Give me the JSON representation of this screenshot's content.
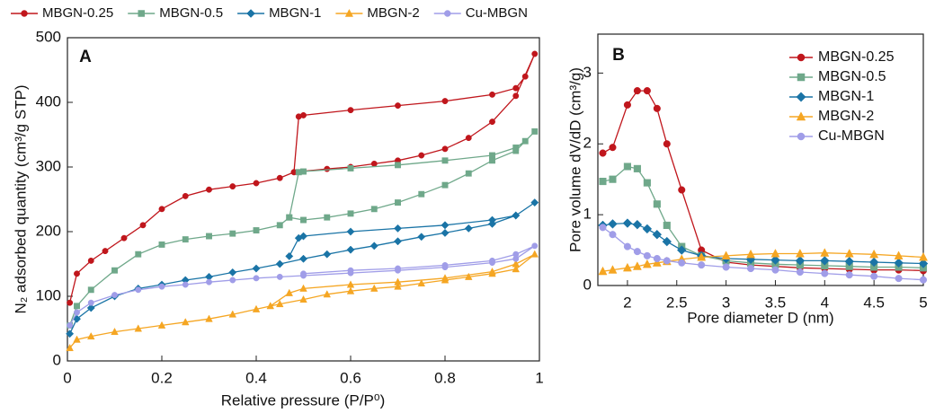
{
  "chart_data": [
    {
      "type": "line",
      "panel_label": "A",
      "xlabel": "Relative pressure (P/P⁰)",
      "ylabel": "N₂ adsorbed quantity (cm³/g STP)",
      "xlim": [
        0,
        1
      ],
      "ylim": [
        0,
        500
      ],
      "xticks": [
        0,
        0.2,
        0.4,
        0.6,
        0.8,
        1
      ],
      "yticks": [
        0,
        100,
        200,
        300,
        400,
        500
      ],
      "legend": "top",
      "series": [
        {
          "name": "MBGN-0.25",
          "color": "#c0161c",
          "marker": "circle",
          "x": [
            0.005,
            0.02,
            0.05,
            0.08,
            0.12,
            0.16,
            0.2,
            0.25,
            0.3,
            0.35,
            0.4,
            0.45,
            0.48,
            0.55,
            0.6,
            0.65,
            0.7,
            0.75,
            0.8,
            0.85,
            0.9,
            0.95,
            0.99,
            0.97,
            0.95,
            0.9,
            0.8,
            0.7,
            0.6,
            0.5,
            0.49,
            0.48
          ],
          "values": [
            90,
            135,
            155,
            170,
            190,
            210,
            235,
            255,
            265,
            270,
            275,
            283,
            292,
            297,
            300,
            305,
            310,
            318,
            328,
            345,
            370,
            410,
            475,
            440,
            422,
            412,
            402,
            395,
            388,
            380,
            378,
            292
          ]
        },
        {
          "name": "MBGN-0.5",
          "color": "#6fa88a",
          "marker": "square",
          "x": [
            0.005,
            0.02,
            0.05,
            0.1,
            0.15,
            0.2,
            0.25,
            0.3,
            0.35,
            0.4,
            0.45,
            0.47,
            0.5,
            0.55,
            0.6,
            0.65,
            0.7,
            0.75,
            0.8,
            0.85,
            0.9,
            0.95,
            0.99,
            0.97,
            0.95,
            0.9,
            0.8,
            0.7,
            0.6,
            0.5,
            0.49,
            0.47
          ],
          "values": [
            55,
            85,
            110,
            140,
            165,
            180,
            188,
            193,
            197,
            202,
            210,
            222,
            218,
            222,
            228,
            235,
            245,
            258,
            272,
            290,
            310,
            325,
            355,
            340,
            330,
            318,
            310,
            303,
            298,
            293,
            292,
            222
          ]
        },
        {
          "name": "MBGN-1",
          "color": "#1a74a6",
          "marker": "diamond",
          "x": [
            0.005,
            0.02,
            0.05,
            0.1,
            0.15,
            0.2,
            0.25,
            0.3,
            0.35,
            0.4,
            0.45,
            0.5,
            0.55,
            0.6,
            0.65,
            0.7,
            0.75,
            0.8,
            0.85,
            0.9,
            0.95,
            0.99,
            0.95,
            0.9,
            0.8,
            0.7,
            0.6,
            0.5,
            0.49,
            0.47
          ],
          "values": [
            42,
            65,
            82,
            100,
            112,
            118,
            125,
            130,
            137,
            143,
            150,
            158,
            165,
            172,
            178,
            185,
            192,
            198,
            205,
            212,
            225,
            245,
            225,
            218,
            210,
            205,
            200,
            193,
            190,
            162
          ]
        },
        {
          "name": "MBGN-2",
          "color": "#f5a623",
          "marker": "triangle",
          "x": [
            0.005,
            0.02,
            0.05,
            0.1,
            0.15,
            0.2,
            0.25,
            0.3,
            0.35,
            0.4,
            0.45,
            0.5,
            0.55,
            0.6,
            0.65,
            0.7,
            0.75,
            0.8,
            0.85,
            0.9,
            0.95,
            0.99,
            0.95,
            0.9,
            0.8,
            0.7,
            0.6,
            0.5,
            0.47,
            0.43
          ],
          "values": [
            20,
            33,
            38,
            45,
            50,
            55,
            60,
            65,
            72,
            80,
            88,
            95,
            103,
            108,
            112,
            115,
            120,
            125,
            130,
            135,
            142,
            165,
            150,
            138,
            128,
            122,
            118,
            112,
            105,
            85
          ]
        },
        {
          "name": "Cu-MBGN",
          "color": "#a09de8",
          "marker": "circle",
          "x": [
            0.005,
            0.02,
            0.05,
            0.1,
            0.15,
            0.2,
            0.25,
            0.3,
            0.35,
            0.4,
            0.45,
            0.5,
            0.6,
            0.7,
            0.8,
            0.9,
            0.95,
            0.99,
            0.95,
            0.9,
            0.8,
            0.7,
            0.6,
            0.5
          ],
          "values": [
            55,
            75,
            90,
            102,
            110,
            115,
            118,
            122,
            125,
            128,
            130,
            132,
            136,
            140,
            145,
            152,
            158,
            178,
            165,
            155,
            148,
            143,
            140,
            135
          ]
        }
      ]
    },
    {
      "type": "line",
      "panel_label": "B",
      "xlabel": "Pore diameter D (nm)",
      "ylabel": "Pore volume dV/dD (cm³/g)",
      "xlim": [
        1.7,
        5
      ],
      "ylim": [
        0,
        3.55
      ],
      "xticks": [
        2,
        2.5,
        3,
        3.5,
        4,
        4.5,
        5
      ],
      "yticks": [
        0,
        1,
        2,
        3
      ],
      "legend": "upper right",
      "x": [
        1.75,
        1.85,
        2.0,
        2.1,
        2.2,
        2.3,
        2.4,
        2.55,
        2.75,
        3,
        3.25,
        3.5,
        3.75,
        4,
        4.25,
        4.5,
        4.75,
        5
      ],
      "series": [
        {
          "name": "MBGN-0.25",
          "color": "#c0161c",
          "marker": "circle",
          "values": [
            1.87,
            1.95,
            2.55,
            2.75,
            2.75,
            2.5,
            2.0,
            1.35,
            0.5,
            0.33,
            0.29,
            0.27,
            0.25,
            0.24,
            0.23,
            0.22,
            0.22,
            0.21
          ]
        },
        {
          "name": "MBGN-0.5",
          "color": "#6fa88a",
          "marker": "square",
          "values": [
            1.47,
            1.5,
            1.68,
            1.65,
            1.45,
            1.15,
            0.85,
            0.55,
            0.42,
            0.35,
            0.32,
            0.3,
            0.29,
            0.28,
            0.27,
            0.26,
            0.26,
            0.25
          ]
        },
        {
          "name": "MBGN-1",
          "color": "#1a74a6",
          "marker": "diamond",
          "values": [
            0.85,
            0.87,
            0.88,
            0.86,
            0.8,
            0.72,
            0.62,
            0.5,
            0.42,
            0.38,
            0.37,
            0.36,
            0.35,
            0.35,
            0.34,
            0.33,
            0.32,
            0.31
          ]
        },
        {
          "name": "MBGN-2",
          "color": "#f5a623",
          "marker": "triangle",
          "values": [
            0.2,
            0.22,
            0.25,
            0.27,
            0.3,
            0.32,
            0.34,
            0.37,
            0.4,
            0.42,
            0.44,
            0.45,
            0.45,
            0.46,
            0.45,
            0.44,
            0.42,
            0.4
          ]
        },
        {
          "name": "Cu-MBGN",
          "color": "#a09de8",
          "marker": "circle",
          "values": [
            0.82,
            0.72,
            0.55,
            0.48,
            0.42,
            0.38,
            0.35,
            0.32,
            0.29,
            0.26,
            0.24,
            0.22,
            0.19,
            0.17,
            0.15,
            0.13,
            0.1,
            0.08
          ]
        }
      ]
    }
  ]
}
